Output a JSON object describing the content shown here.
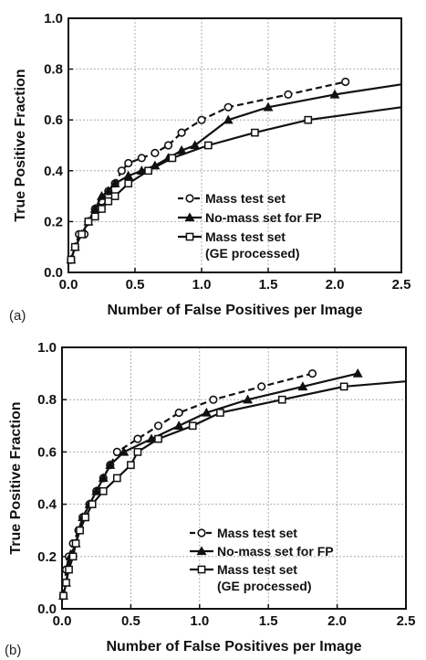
{
  "chart_data": [
    {
      "type": "line",
      "panel_label": "(a)",
      "xlabel": "Number of False Positives per Image",
      "ylabel": "True Positive Fraction",
      "xlim": [
        0,
        2.5
      ],
      "ylim": [
        0,
        1.0
      ],
      "xticks": [
        "0.0",
        "0.5",
        "1.0",
        "1.5",
        "2.0",
        "2.5"
      ],
      "yticks": [
        "0.0",
        "0.2",
        "0.4",
        "0.6",
        "0.8",
        "1.0"
      ],
      "grid": true,
      "legend_position": "bottom-right",
      "series": [
        {
          "name": "Mass test set",
          "marker": "circle",
          "dash": true,
          "points": [
            [
              0.02,
              0.05
            ],
            [
              0.05,
              0.1
            ],
            [
              0.08,
              0.15
            ],
            [
              0.12,
              0.15
            ],
            [
              0.15,
              0.2
            ],
            [
              0.2,
              0.25
            ],
            [
              0.25,
              0.28
            ],
            [
              0.3,
              0.32
            ],
            [
              0.35,
              0.35
            ],
            [
              0.4,
              0.4
            ],
            [
              0.45,
              0.43
            ],
            [
              0.55,
              0.45
            ],
            [
              0.65,
              0.47
            ],
            [
              0.75,
              0.5
            ],
            [
              0.85,
              0.55
            ],
            [
              1.0,
              0.6
            ],
            [
              1.2,
              0.65
            ],
            [
              1.65,
              0.7
            ],
            [
              2.08,
              0.75
            ]
          ]
        },
        {
          "name": "No-mass set for FP",
          "marker": "triangle",
          "dash": false,
          "points": [
            [
              0.02,
              0.05
            ],
            [
              0.05,
              0.1
            ],
            [
              0.1,
              0.15
            ],
            [
              0.15,
              0.2
            ],
            [
              0.2,
              0.25
            ],
            [
              0.25,
              0.3
            ],
            [
              0.3,
              0.32
            ],
            [
              0.35,
              0.35
            ],
            [
              0.45,
              0.38
            ],
            [
              0.55,
              0.4
            ],
            [
              0.65,
              0.42
            ],
            [
              0.75,
              0.45
            ],
            [
              0.85,
              0.48
            ],
            [
              0.95,
              0.5
            ],
            [
              1.2,
              0.6
            ],
            [
              1.5,
              0.65
            ],
            [
              2.0,
              0.7
            ],
            [
              2.5,
              0.74
            ]
          ]
        },
        {
          "name": "Mass test set\n(GE processed)",
          "marker": "square",
          "dash": false,
          "points": [
            [
              0.02,
              0.05
            ],
            [
              0.05,
              0.1
            ],
            [
              0.1,
              0.15
            ],
            [
              0.15,
              0.2
            ],
            [
              0.2,
              0.22
            ],
            [
              0.25,
              0.25
            ],
            [
              0.3,
              0.28
            ],
            [
              0.35,
              0.3
            ],
            [
              0.45,
              0.35
            ],
            [
              0.6,
              0.4
            ],
            [
              0.78,
              0.45
            ],
            [
              1.05,
              0.5
            ],
            [
              1.4,
              0.55
            ],
            [
              1.8,
              0.6
            ],
            [
              2.5,
              0.65
            ]
          ]
        }
      ]
    },
    {
      "type": "line",
      "panel_label": "(b)",
      "xlabel": "Number of False Positives per Image",
      "ylabel": "True Positive Fraction",
      "xlim": [
        0,
        2.5
      ],
      "ylim": [
        0,
        1.0
      ],
      "xticks": [
        "0.0",
        "0.5",
        "1.0",
        "1.5",
        "2.0",
        "2.5"
      ],
      "yticks": [
        "0.0",
        "0.2",
        "0.4",
        "0.6",
        "0.8",
        "1.0"
      ],
      "grid": true,
      "legend_position": "bottom-right",
      "series": [
        {
          "name": "Mass test set",
          "marker": "circle",
          "dash": true,
          "points": [
            [
              0.01,
              0.05
            ],
            [
              0.03,
              0.15
            ],
            [
              0.05,
              0.2
            ],
            [
              0.08,
              0.25
            ],
            [
              0.12,
              0.3
            ],
            [
              0.15,
              0.35
            ],
            [
              0.2,
              0.4
            ],
            [
              0.25,
              0.45
            ],
            [
              0.3,
              0.5
            ],
            [
              0.35,
              0.55
            ],
            [
              0.4,
              0.6
            ],
            [
              0.55,
              0.65
            ],
            [
              0.7,
              0.7
            ],
            [
              0.85,
              0.75
            ],
            [
              1.1,
              0.8
            ],
            [
              1.45,
              0.85
            ],
            [
              1.82,
              0.9
            ]
          ]
        },
        {
          "name": "No-mass set for FP",
          "marker": "triangle",
          "dash": false,
          "points": [
            [
              0.01,
              0.05
            ],
            [
              0.03,
              0.1
            ],
            [
              0.06,
              0.2
            ],
            [
              0.1,
              0.25
            ],
            [
              0.15,
              0.35
            ],
            [
              0.2,
              0.4
            ],
            [
              0.25,
              0.45
            ],
            [
              0.3,
              0.5
            ],
            [
              0.35,
              0.55
            ],
            [
              0.45,
              0.6
            ],
            [
              0.65,
              0.65
            ],
            [
              0.85,
              0.7
            ],
            [
              1.05,
              0.75
            ],
            [
              1.35,
              0.8
            ],
            [
              1.75,
              0.85
            ],
            [
              2.15,
              0.9
            ]
          ]
        },
        {
          "name": "Mass test set\n(GE processed)",
          "marker": "square",
          "dash": false,
          "points": [
            [
              0.01,
              0.05
            ],
            [
              0.03,
              0.1
            ],
            [
              0.05,
              0.15
            ],
            [
              0.08,
              0.2
            ],
            [
              0.1,
              0.25
            ],
            [
              0.13,
              0.3
            ],
            [
              0.17,
              0.35
            ],
            [
              0.22,
              0.4
            ],
            [
              0.3,
              0.45
            ],
            [
              0.4,
              0.5
            ],
            [
              0.5,
              0.55
            ],
            [
              0.55,
              0.6
            ],
            [
              0.7,
              0.65
            ],
            [
              0.95,
              0.7
            ],
            [
              1.15,
              0.75
            ],
            [
              1.6,
              0.8
            ],
            [
              2.05,
              0.85
            ],
            [
              2.5,
              0.87
            ]
          ]
        }
      ]
    }
  ]
}
